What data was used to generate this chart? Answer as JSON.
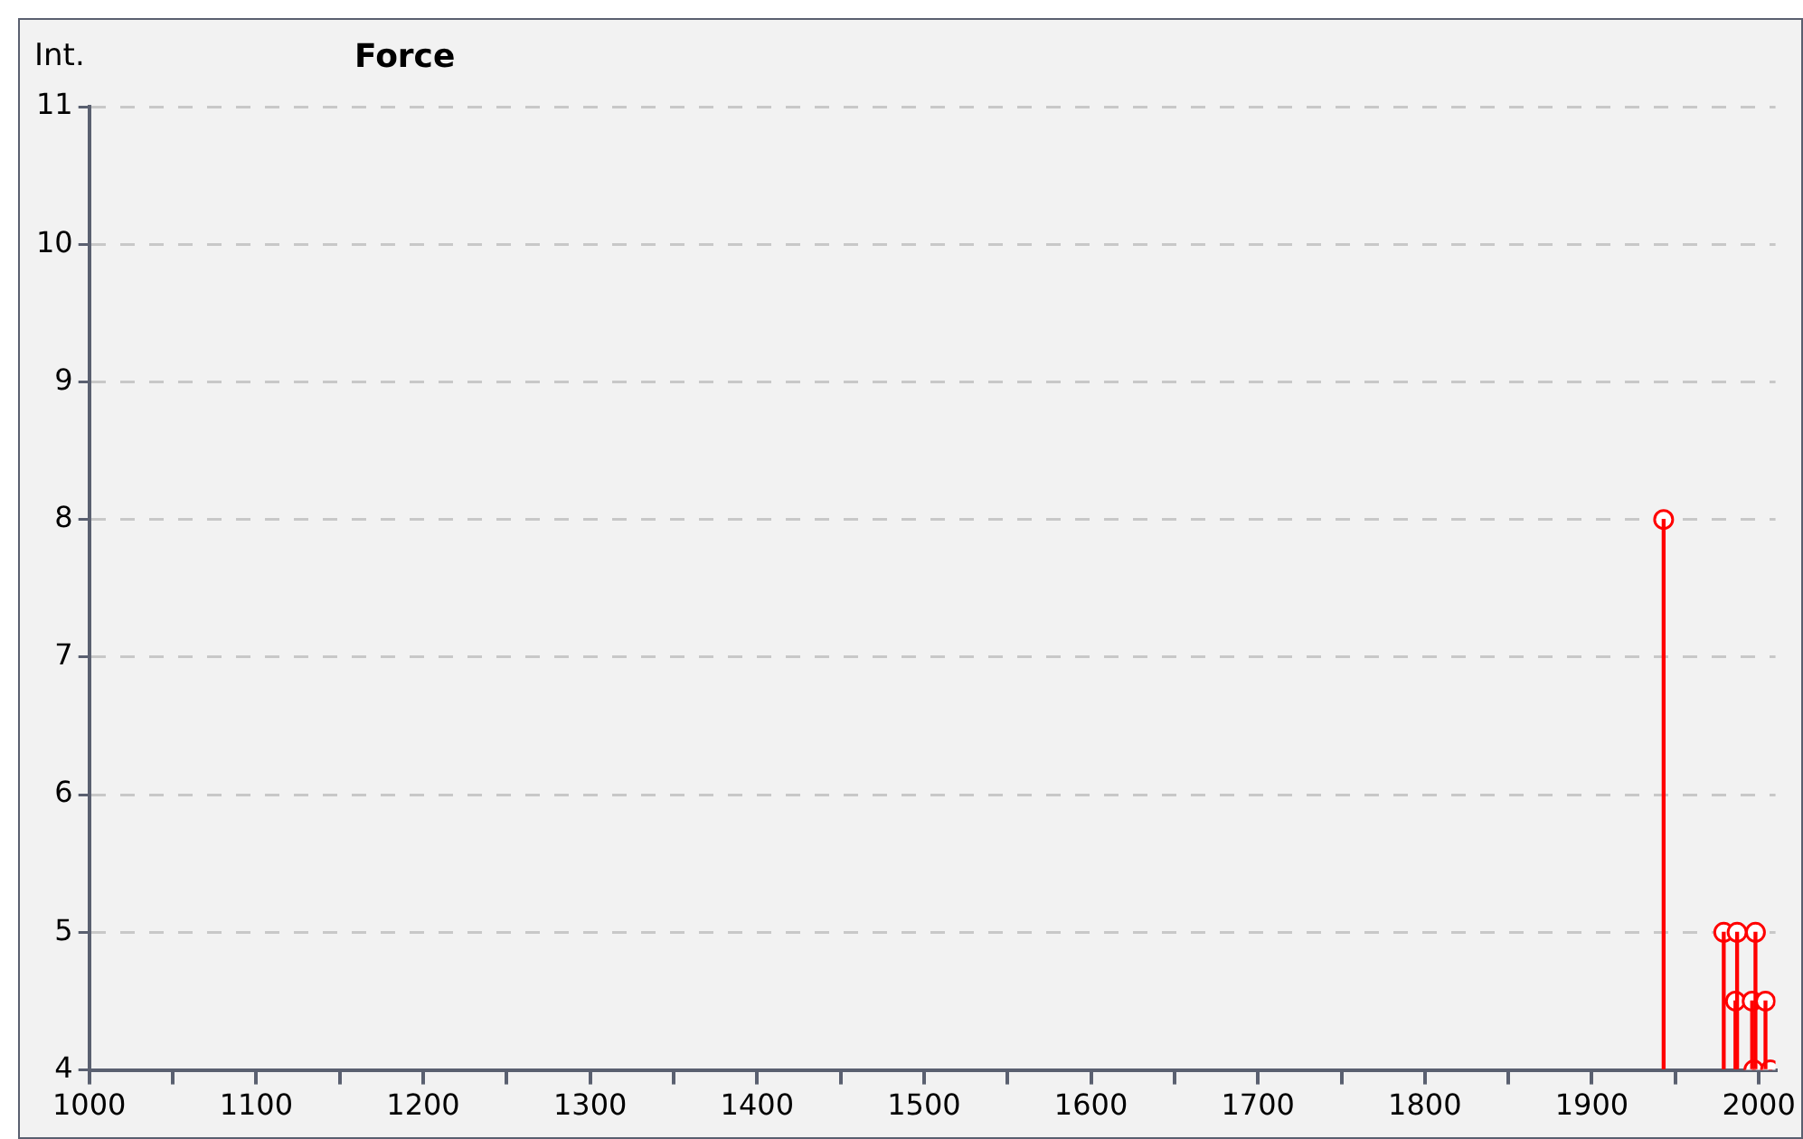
{
  "chart_data": {
    "type": "lollipop",
    "title": "Force",
    "ylabel": "Int.",
    "x": [
      1943,
      1979,
      1987,
      1998,
      1986,
      1996,
      2004,
      1997,
      2007
    ],
    "series": [
      {
        "color": "#ff0000",
        "values": [
          8,
          5,
          5,
          5,
          4.5,
          4.5,
          4.5,
          4,
          4
        ]
      }
    ],
    "xlim": [
      1000,
      2010
    ],
    "xticks": [
      1000,
      {
        "value": 1050,
        "label": null
      },
      1100,
      {
        "value": 1150,
        "label": null
      },
      1200,
      {
        "value": 1250,
        "label": null
      },
      1300,
      {
        "value": 1350,
        "label": null
      },
      1400,
      {
        "value": 1450,
        "label": null
      },
      1500,
      {
        "value": 1550,
        "label": null
      },
      1600,
      {
        "value": 1650,
        "label": null
      },
      1700,
      {
        "value": 1750,
        "label": null
      },
      1800,
      {
        "value": 1850,
        "label": null
      },
      1900,
      {
        "value": 1950,
        "label": null
      },
      2000
    ],
    "ylim": [
      4,
      11
    ],
    "yticks": [
      4,
      5,
      6,
      7,
      8,
      9,
      10,
      11
    ],
    "grid": "y",
    "marker": "circle",
    "legend": false
  }
}
